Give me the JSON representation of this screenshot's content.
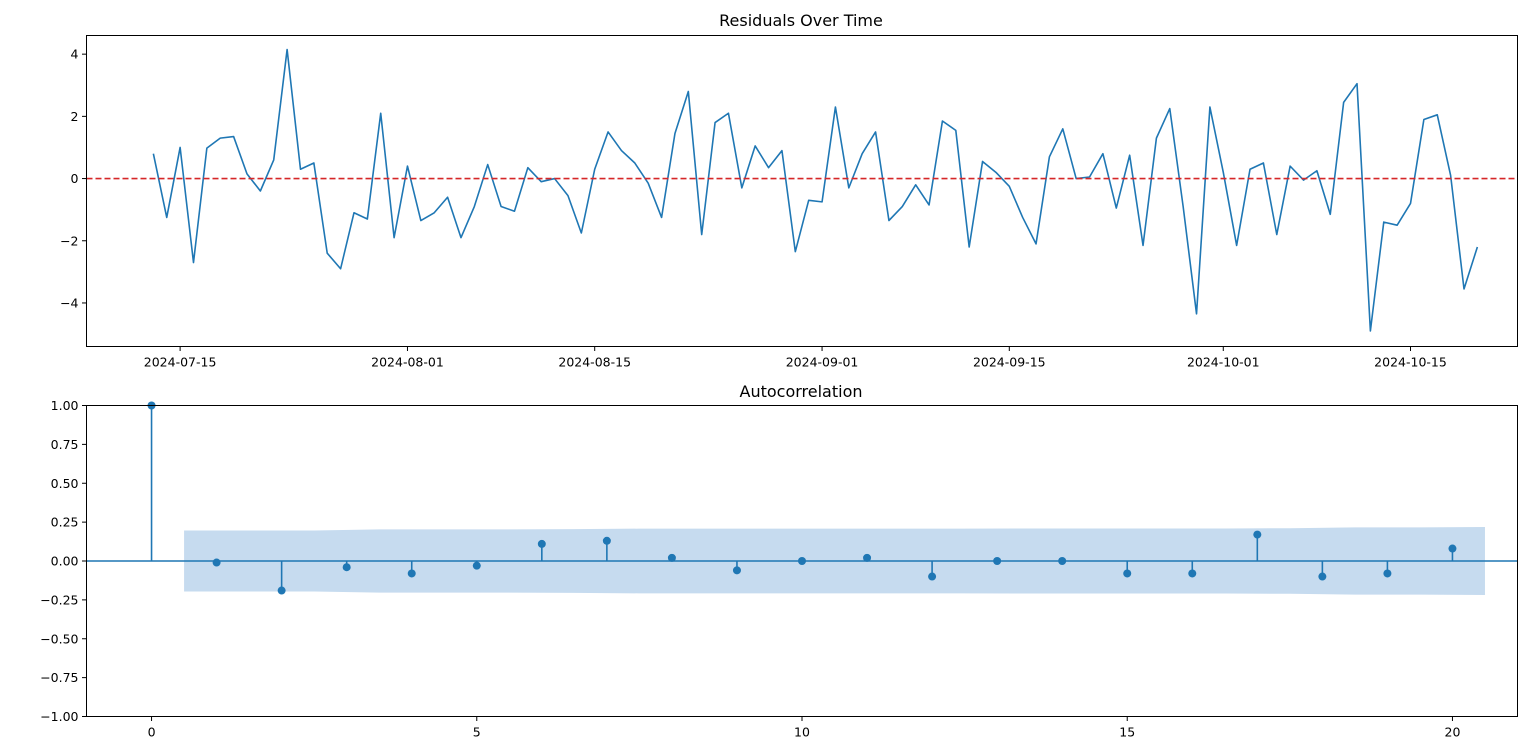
{
  "chart_data": [
    {
      "type": "line",
      "title": "Residuals Over Time",
      "xlabel": "",
      "ylabel": "",
      "x_start": "2024-07-13",
      "x_range": [
        "2024-07-08",
        "2024-10-23"
      ],
      "ylim": [
        -5.4,
        4.6
      ],
      "xticks": [
        "2024-07-15",
        "2024-08-01",
        "2024-08-15",
        "2024-09-01",
        "2024-09-15",
        "2024-10-01",
        "2024-10-15"
      ],
      "yticks": [
        -4,
        -2,
        0,
        2,
        4
      ],
      "reference_line": {
        "y": 0,
        "color": "#d62728",
        "style": "dashed"
      },
      "color": "#1f77b4",
      "grid": false,
      "values": [
        0.8,
        -1.25,
        1.0,
        -2.7,
        0.98,
        1.3,
        1.35,
        0.15,
        -0.4,
        0.6,
        4.15,
        0.3,
        0.5,
        -2.4,
        -2.9,
        -1.1,
        -1.3,
        2.1,
        -1.9,
        0.4,
        -1.35,
        -1.1,
        -0.6,
        -1.9,
        -0.9,
        0.45,
        -0.9,
        -1.05,
        0.35,
        -0.1,
        0.0,
        -0.55,
        -1.75,
        0.3,
        1.5,
        0.9,
        0.5,
        -0.15,
        -1.25,
        1.45,
        2.8,
        -1.8,
        1.8,
        2.1,
        -0.3,
        1.05,
        0.35,
        0.9,
        -2.35,
        -0.7,
        -0.75,
        2.3,
        -0.3,
        0.8,
        1.5,
        -1.35,
        -0.9,
        -0.2,
        -0.85,
        1.85,
        1.55,
        -2.2,
        0.55,
        0.2,
        -0.25,
        -1.25,
        -2.1,
        0.7,
        1.6,
        0.0,
        0.05,
        0.8,
        -0.95,
        0.75,
        -2.15,
        1.3,
        2.25,
        -0.9,
        -4.35,
        2.3,
        0.2,
        -2.15,
        0.3,
        0.5,
        -1.8,
        0.4,
        -0.05,
        0.25,
        -1.15,
        2.45,
        3.05,
        -4.9,
        -1.4,
        -1.5,
        -0.8,
        1.9,
        2.05,
        0.1,
        -3.55,
        -2.2
      ]
    },
    {
      "type": "stem",
      "title": "Autocorrelation",
      "xlabel": "",
      "ylabel": "",
      "xlim": [
        -1.0,
        21.0
      ],
      "ylim": [
        -1.0,
        1.0
      ],
      "xticks": [
        0,
        5,
        10,
        15,
        20
      ],
      "yticks": [
        "-1.00",
        "-0.75",
        "-0.50",
        "-0.25",
        "0.00",
        "0.25",
        "0.50",
        "0.75",
        "1.00"
      ],
      "color": "#1f77b4",
      "confidence_color": "#c6dbef",
      "grid": false,
      "lags": [
        0,
        1,
        2,
        3,
        4,
        5,
        6,
        7,
        8,
        9,
        10,
        11,
        12,
        13,
        14,
        15,
        16,
        17,
        18,
        19,
        20
      ],
      "values": [
        1.0,
        -0.01,
        -0.19,
        -0.04,
        -0.08,
        -0.03,
        0.11,
        0.13,
        0.02,
        -0.06,
        0.0,
        0.02,
        -0.1,
        0.0,
        0.0,
        -0.08,
        -0.08,
        0.17,
        -0.1,
        -0.08,
        0.08
      ],
      "confidence_band": {
        "lags": [
          0.5,
          1.5,
          2.5,
          3.5,
          4.5,
          5.5,
          6.5,
          7.5,
          8.5,
          9.5,
          10.5,
          11.5,
          12.5,
          13.5,
          14.5,
          15.5,
          16.5,
          17.5,
          18.5,
          19.5,
          20.5
        ],
        "upper": [
          0.196,
          0.196,
          0.196,
          0.203,
          0.203,
          0.203,
          0.205,
          0.208,
          0.208,
          0.208,
          0.208,
          0.208,
          0.208,
          0.209,
          0.209,
          0.209,
          0.209,
          0.211,
          0.216,
          0.216,
          0.219
        ]
      }
    }
  ]
}
